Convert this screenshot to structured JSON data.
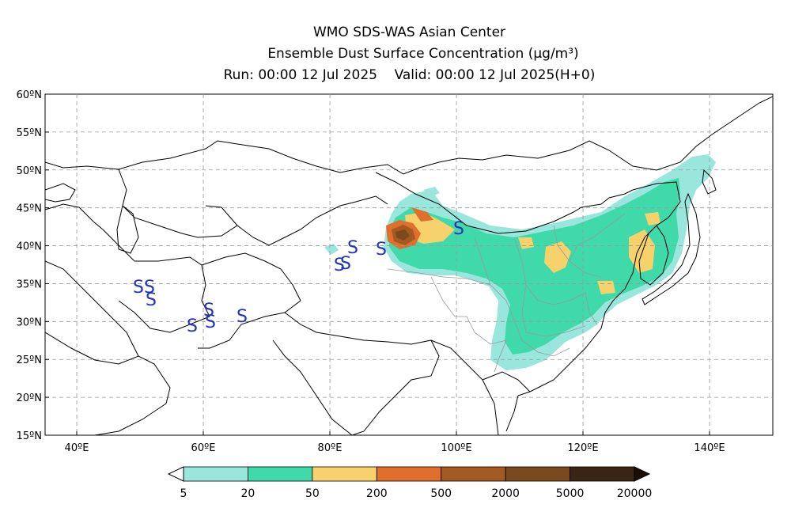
{
  "title": {
    "line1": "WMO SDS-WAS Asian Center",
    "line2": "Ensemble Dust Surface Concentration (μg/m³)",
    "line3": "Run: 00:00 12 Jul 2025    Valid: 00:00 12 Jul 2025(H+0)"
  },
  "map": {
    "lon_range": [
      35,
      150
    ],
    "lat_range": [
      15,
      60
    ],
    "lat_ticks": [
      "15ºN",
      "20ºN",
      "25ºN",
      "30ºN",
      "35ºN",
      "40ºN",
      "45ºN",
      "50ºN",
      "55ºN",
      "60ºN"
    ],
    "lon_ticks": [
      "40ºE",
      "60ºE",
      "80ºE",
      "100ºE",
      "120ºE",
      "140ºE"
    ],
    "grid": "dashed",
    "storm_symbol": "S",
    "storm_symbol_color": "#2233bb"
  },
  "colorbar": {
    "labels": [
      "5",
      "20",
      "50",
      "200",
      "500",
      "2000",
      "5000",
      "20000"
    ],
    "colors": [
      "#99e6dc",
      "#40d9aa",
      "#f7d16b",
      "#e06f2e",
      "#a35a22",
      "#7a4a1e",
      "#3a2413"
    ]
  }
}
